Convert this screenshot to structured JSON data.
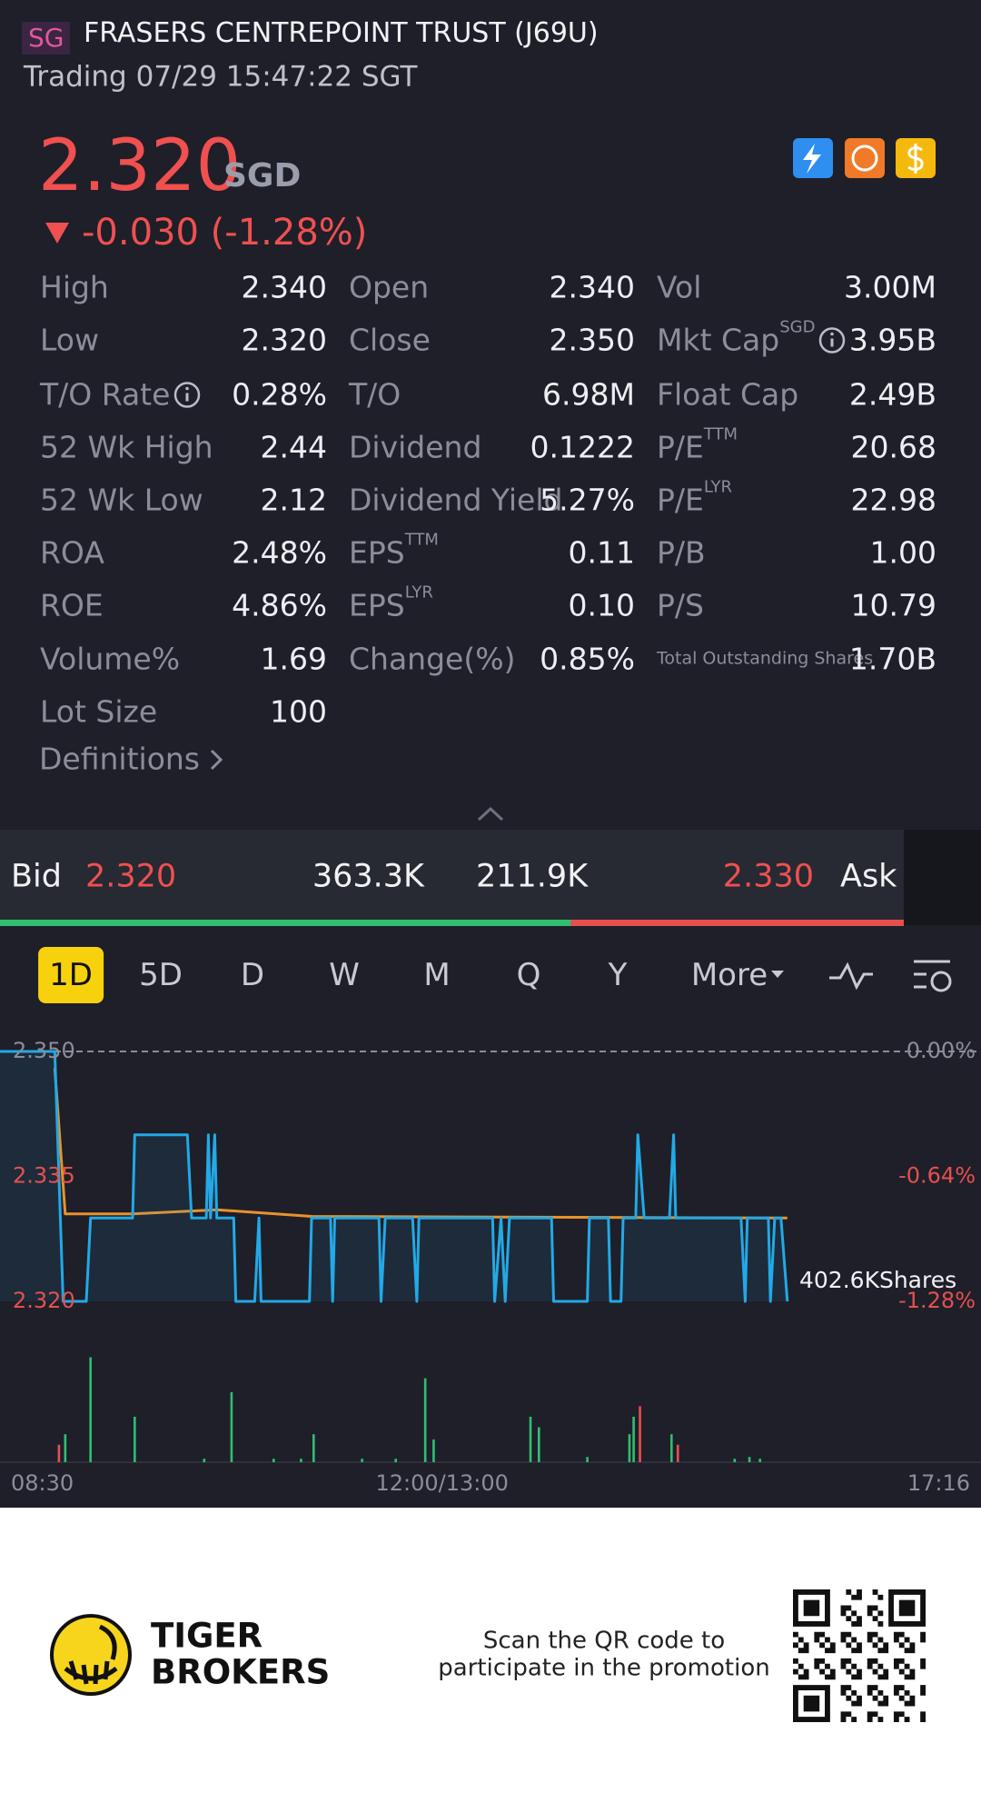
{
  "status": {
    "market": "SG",
    "title": "FRASERS CENTREPOINT TRUST (J69U)",
    "subtitle": "Trading 07/29 15:47:22 SGT"
  },
  "quote": {
    "price": "2.320",
    "currency": "SGD",
    "change": "-0.030 (-1.28%)"
  },
  "stats": [
    [
      {
        "label": "High",
        "value": "2.340"
      },
      {
        "label": "Open",
        "value": "2.340"
      },
      {
        "label": "Vol",
        "value": "3.00M"
      }
    ],
    [
      {
        "label": "Low",
        "value": "2.320"
      },
      {
        "label": "Close",
        "value": "2.350"
      },
      {
        "label": "Mkt Cap",
        "sup": "SGD",
        "info": true,
        "value": "3.95B"
      }
    ],
    [
      {
        "label": "T/O Rate",
        "info": true,
        "value": "0.28%"
      },
      {
        "label": "T/O",
        "value": "6.98M"
      },
      {
        "label": "Float Cap",
        "value": "2.49B"
      }
    ],
    [
      {
        "label": "52 Wk High",
        "value": "2.44"
      },
      {
        "label": "Dividend",
        "value": "0.1222"
      },
      {
        "label": "P/E",
        "sup": "TTM",
        "value": "20.68"
      }
    ],
    [
      {
        "label": "52 Wk Low",
        "value": "2.12"
      },
      {
        "label": "Dividend Yield",
        "value": "5.27%"
      },
      {
        "label": "P/E",
        "sup": "LYR",
        "value": "22.98"
      }
    ],
    [
      {
        "label": "ROA",
        "value": "2.48%"
      },
      {
        "label": "EPS",
        "sup": "TTM",
        "value": "0.11"
      },
      {
        "label": "P/B",
        "value": "1.00"
      }
    ],
    [
      {
        "label": "ROE",
        "value": "4.86%"
      },
      {
        "label": "EPS",
        "sup": "LYR",
        "value": "0.10"
      },
      {
        "label": "P/S",
        "value": "10.79"
      }
    ],
    [
      {
        "label": "Volume%",
        "value": "1.69"
      },
      {
        "label": "Change(%)",
        "value": "0.85%"
      },
      {
        "label": "Total Outstanding Shares",
        "small": true,
        "value": "1.70B"
      }
    ],
    [
      {
        "label": "Lot Size",
        "value": "100"
      }
    ]
  ],
  "definitions": "Definitions",
  "order_book": {
    "bid_label": "Bid",
    "bid_price": "2.320",
    "bid_volume": {
      "value": 363300,
      "label": "363.3K"
    },
    "ask_volume": {
      "value": 211900,
      "label": "211.9K"
    },
    "ask_price": "2.330",
    "ask_label": "Ask"
  },
  "tabs": {
    "items": [
      "1D",
      "5D",
      "D",
      "W",
      "M",
      "Q",
      "Y",
      "More"
    ],
    "active": 0
  },
  "chart_data": {
    "type": "line",
    "xlim": [
      0,
      466
    ],
    "xticks": [
      {
        "value": 0,
        "label": "08:30"
      },
      {
        "value": 210,
        "label": "12:00/13:00"
      },
      {
        "value": 466,
        "label": "17:16"
      }
    ],
    "ylim": [
      2.32,
      2.35
    ],
    "yticks": [
      {
        "value": 2.35,
        "label": "2.350"
      },
      {
        "value": 2.335,
        "label": "2.335"
      },
      {
        "value": 2.32,
        "label": "2.320"
      }
    ],
    "y2lim": [
      -1.28,
      0
    ],
    "y2ticks": [
      {
        "value": 0,
        "label": "0.00%"
      },
      {
        "value": -0.64,
        "label": "-0.64%"
      },
      {
        "value": -1.28,
        "label": "-1.28%"
      }
    ],
    "dashed_line": 2.35,
    "series": [
      {
        "color": "#22a9e6",
        "x": [
          0,
          26,
          30,
          41,
          43,
          63,
          64,
          89,
          91,
          98,
          99,
          100,
          102,
          103,
          111,
          112,
          121,
          123,
          124,
          147,
          148,
          157,
          158,
          159,
          180,
          181,
          183,
          196,
          198,
          199,
          234,
          235,
          238,
          240,
          242,
          262,
          263,
          279,
          280,
          289,
          290,
          295,
          296,
          302,
          303,
          306,
          318,
          320,
          321,
          352,
          354,
          355,
          365,
          366,
          368,
          371,
          374
        ],
        "values": [
          2.35,
          2.35,
          2.32,
          2.32,
          2.33,
          2.33,
          2.34,
          2.34,
          2.33,
          2.33,
          2.34,
          2.33,
          2.34,
          2.33,
          2.33,
          2.32,
          2.32,
          2.33,
          2.32,
          2.32,
          2.33,
          2.33,
          2.32,
          2.33,
          2.33,
          2.32,
          2.33,
          2.33,
          2.32,
          2.33,
          2.33,
          2.32,
          2.33,
          2.32,
          2.33,
          2.33,
          2.32,
          2.32,
          2.33,
          2.33,
          2.32,
          2.32,
          2.33,
          2.33,
          2.34,
          2.33,
          2.33,
          2.34,
          2.33,
          2.33,
          2.32,
          2.33,
          2.33,
          2.32,
          2.33,
          2.33,
          2.32
        ]
      },
      {
        "color": "#e8922c",
        "x": [
          26,
          31,
          63,
          103,
          148,
          374
        ],
        "values": [
          2.348,
          2.3305,
          2.3305,
          2.331,
          2.3302,
          2.33
        ]
      }
    ],
    "volume": {
      "label": "402.6KShares",
      "ylim": [
        0,
        402600
      ],
      "x": [
        28,
        31,
        43,
        64,
        97,
        110,
        130,
        143,
        149,
        172,
        188,
        202,
        206,
        252,
        256,
        279,
        299,
        301,
        304,
        319,
        322,
        349,
        356,
        361
      ],
      "values": [
        50000,
        80000,
        300000,
        130000,
        10000,
        200000,
        10000,
        10000,
        80000,
        10000,
        10000,
        240000,
        65000,
        130000,
        100000,
        15000,
        80000,
        130000,
        160000,
        80000,
        50000,
        10000,
        15000,
        10000
      ],
      "colors": [
        "#e5504e",
        "#2fbf71",
        "#2fbf71",
        "#2fbf71",
        "#2fbf71",
        "#2fbf71",
        "#2fbf71",
        "#2fbf71",
        "#2fbf71",
        "#2fbf71",
        "#2fbf71",
        "#2fbf71",
        "#2fbf71",
        "#2fbf71",
        "#2fbf71",
        "#2fbf71",
        "#2fbf71",
        "#2fbf71",
        "#e5504e",
        "#2fbf71",
        "#e5504e",
        "#2fbf71",
        "#2fbf71",
        "#2fbf71"
      ]
    }
  },
  "footer": {
    "brand": [
      "TIGER",
      "BROKERS"
    ],
    "promo": [
      "Scan the QR code to",
      "participate in the promotion"
    ]
  }
}
